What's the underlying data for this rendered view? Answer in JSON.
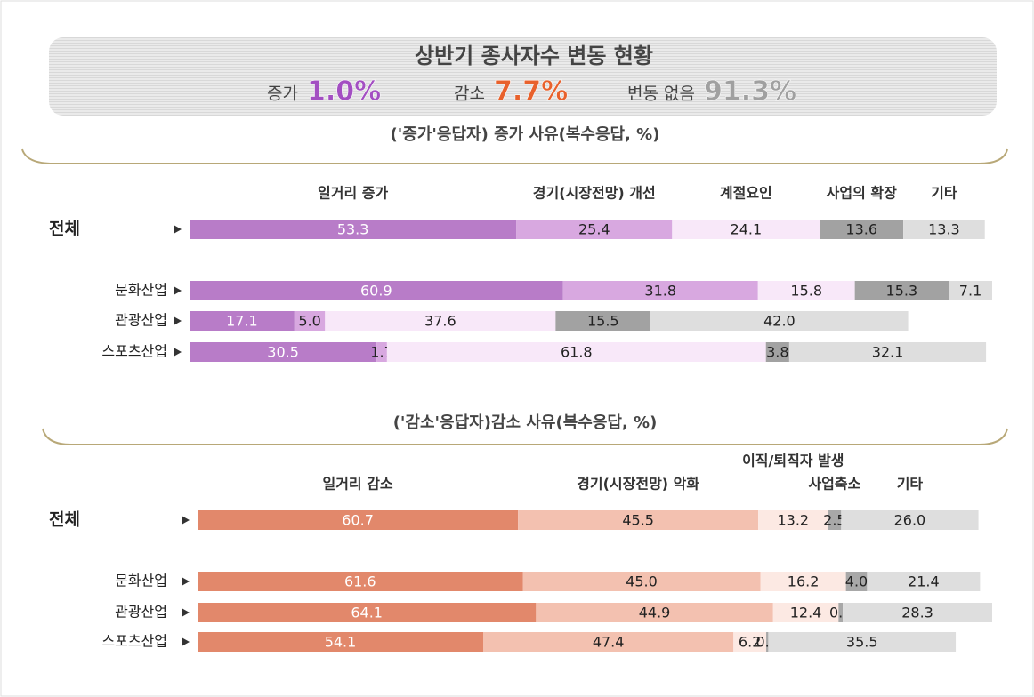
{
  "header": {
    "title": "상반기 종사자수 변동 현황",
    "summary": [
      {
        "name": "증가",
        "label": "1.0%",
        "color": "#a34fc2"
      },
      {
        "name": "감소",
        "label": "7.7%",
        "color": "#e8612c"
      },
      {
        "name": "변동 없음",
        "label": "91.3%",
        "color": "#a0a0a0"
      }
    ]
  },
  "chart_data": [
    {
      "type": "stacked-barh",
      "subtitle": "('증가'응답자) 증가 사유(복수응답, %)",
      "categories": [
        "전체",
        "문화산업",
        "관광산업",
        "스포츠산업"
      ],
      "series": [
        {
          "name": "일거리 증가",
          "color": "#b87cc8",
          "values": [
            53.3,
            60.9,
            17.1,
            30.5
          ],
          "value_labels": [
            "53.3",
            "60.9",
            "17.1",
            "30.5"
          ]
        },
        {
          "name": "경기(시장전망) 개선",
          "color": "#d8a8e0",
          "values": [
            25.4,
            31.8,
            5.0,
            1.7
          ],
          "value_labels": [
            "25.4",
            "31.8",
            "5.0",
            "1.7"
          ]
        },
        {
          "name": "계절요인",
          "color": "#f8e8f9",
          "values": [
            24.1,
            15.8,
            37.6,
            61.8
          ],
          "value_labels": [
            "24.1",
            "15.8",
            "37.6",
            "61.8"
          ]
        },
        {
          "name": "사업의 확장",
          "color": "#a2a2a2",
          "values": [
            13.6,
            15.3,
            15.5,
            3.8
          ],
          "value_labels": [
            "13.6",
            "15.3",
            "15.5",
            "3.8"
          ]
        },
        {
          "name": "기타",
          "color": "#dedede",
          "values": [
            13.3,
            7.1,
            42.0,
            32.1
          ],
          "value_labels": [
            "13.3",
            "7.1",
            "42.0",
            "32.1"
          ]
        }
      ]
    },
    {
      "type": "stacked-barh",
      "subtitle": "('감소'응답자)감소 사유(복수응답, %)",
      "categories": [
        "전체",
        "문화산업",
        "관광산업",
        "스포츠산업"
      ],
      "series": [
        {
          "name": "일거리 감소",
          "color": "#e2886b",
          "values": [
            60.7,
            61.6,
            64.1,
            54.1
          ],
          "value_labels": [
            "60.7",
            "61.6",
            "64.1",
            "54.1"
          ]
        },
        {
          "name": "경기(시장전망) 악화",
          "color": "#f3c1b0",
          "values": [
            45.5,
            45.0,
            44.9,
            47.4
          ],
          "value_labels": [
            "45.5",
            "45.0",
            "44.9",
            "47.4"
          ]
        },
        {
          "name": "이직/퇴직자 발생",
          "color": "#fce9e3",
          "values": [
            13.2,
            16.2,
            12.4,
            6.2
          ],
          "value_labels": [
            "13.2",
            "16.2",
            "12.4",
            "6.2"
          ]
        },
        {
          "name": "사업축소",
          "color": "#a8a8a8",
          "values": [
            2.5,
            4.0,
            0.8,
            0.4
          ],
          "value_labels": [
            "2.5",
            "4.0",
            "0.8",
            "0.4"
          ]
        },
        {
          "name": "기타",
          "color": "#dedede",
          "values": [
            26.0,
            21.4,
            28.3,
            35.5
          ],
          "value_labels": [
            "26.0",
            "21.4",
            "28.3",
            "35.5"
          ]
        }
      ]
    }
  ]
}
